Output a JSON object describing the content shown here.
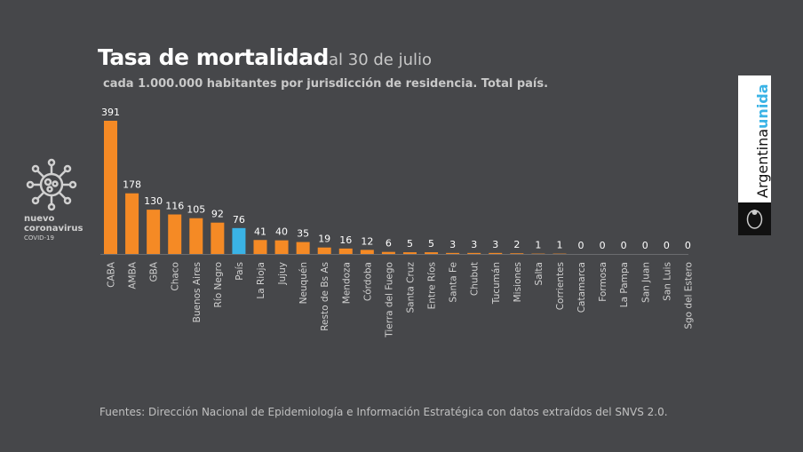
{
  "header": {
    "title": "Tasa de mortalidad",
    "date": "al 30 de julio",
    "subtitle": "cada 1.000.000 habitantes por jurisdicción de residencia. Total país."
  },
  "logo": {
    "line1": "nuevo",
    "line2": "coronavirus",
    "line3": "COVID-19"
  },
  "brand": {
    "part1": "Argentina",
    "part2": "unida"
  },
  "footer": "Fuentes: Dirección Nacional de Epidemiología e Información Estratégica con datos extraídos del SNVS 2.0.",
  "colors": {
    "bar": "#f58a25",
    "highlight": "#3ab3e6",
    "background": "#46474a"
  },
  "chart_data": {
    "type": "bar",
    "title": "Tasa de mortalidad al 30 de julio",
    "categories": [
      "CABA",
      "AMBA",
      "GBA",
      "Chaco",
      "Buenos Aires",
      "Río Negro",
      "País",
      "La Rioja",
      "Jujuy",
      "Neuquén",
      "Resto de Bs As",
      "Mendoza",
      "Córdoba",
      "Tierra del Fuego",
      "Santa Cruz",
      "Entre Ríos",
      "Santa Fe",
      "Chubut",
      "Tucumán",
      "Misiones",
      "Salta",
      "Corrientes",
      "Catamarca",
      "Formosa",
      "La Pampa",
      "San Juan",
      "San Luis",
      "Sgo del Estero"
    ],
    "values": [
      391,
      178,
      130,
      116,
      105,
      92,
      76,
      41,
      40,
      35,
      19,
      16,
      12,
      6,
      5,
      5,
      3,
      3,
      3,
      2,
      1,
      1,
      0,
      0,
      0,
      0,
      0,
      0
    ],
    "highlight": "País",
    "xlabel": "",
    "ylabel": "",
    "ylim": [
      0,
      400
    ]
  }
}
